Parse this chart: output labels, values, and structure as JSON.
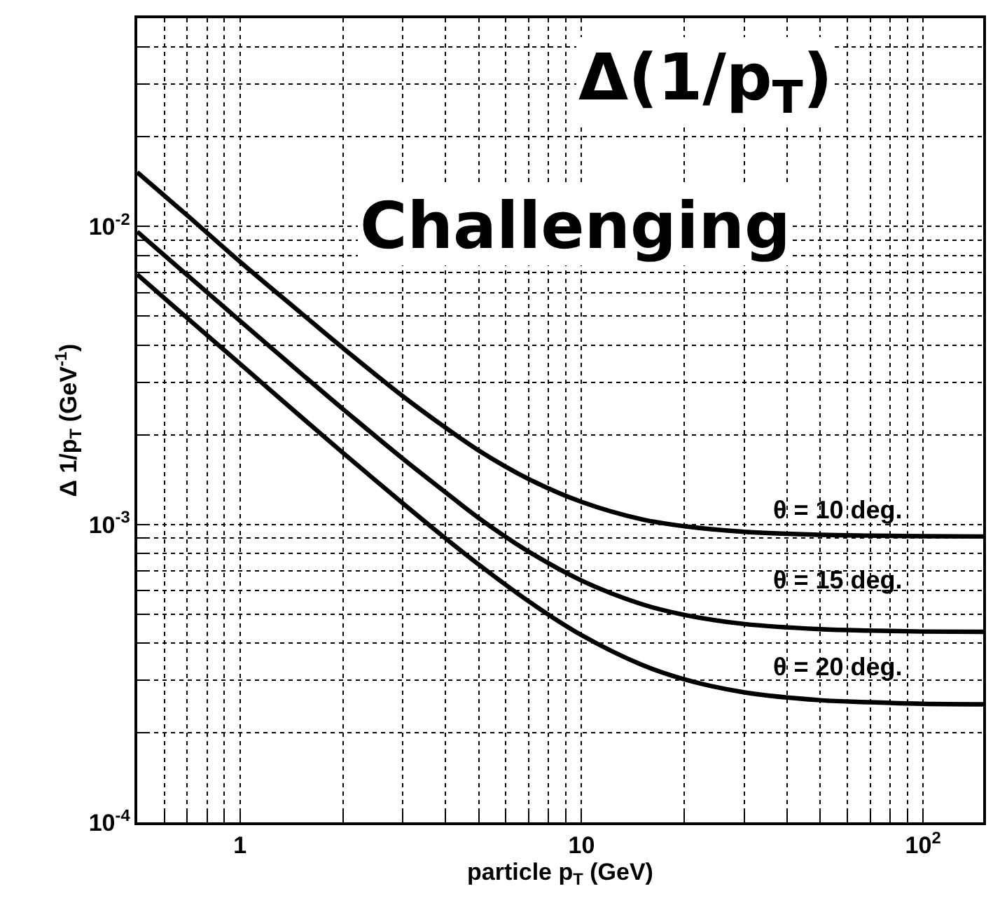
{
  "chart_data": {
    "type": "line",
    "xlabel": "particle p$_{T}$ (GeV)",
    "ylabel": "Δ 1/p$_{T}$ (GeV$^{-1}$)",
    "x": [
      0.5,
      0.7,
      1,
      1.5,
      2,
      3,
      4,
      5,
      7,
      10,
      15,
      20,
      30,
      50,
      70,
      100,
      150
    ],
    "series": [
      {
        "color": "#000000",
        "values": [
          0.0152,
          0.0109,
          0.00761,
          0.00515,
          0.00391,
          0.00269,
          0.00211,
          0.00177,
          0.00142,
          0.00119,
          0.00104,
          0.000986,
          0.000944,
          0.000923,
          0.000917,
          0.000913,
          0.000911
        ]
      },
      {
        "color": "#000000",
        "values": [
          0.0096,
          0.00687,
          0.00482,
          0.00323,
          0.00244,
          0.00166,
          0.00128,
          0.00105,
          0.00081,
          0.000648,
          0.00054,
          0.000497,
          0.000463,
          0.000445,
          0.00044,
          0.000437,
          0.000436
        ]
      },
      {
        "color": "#000000",
        "values": [
          0.0069,
          0.00493,
          0.00346,
          0.00231,
          0.00174,
          0.001176,
          0.000897,
          0.000733,
          0.000552,
          0.000425,
          0.000338,
          0.000302,
          0.000273,
          0.000257,
          0.000253,
          0.00025,
          0.000249
        ]
      }
    ],
    "annotations": [
      "Δ(1/p$_{T}$)",
      "Challenging",
      "θ = 10 deg.",
      "θ = 15 deg.",
      "θ = 20 deg."
    ],
    "log": "xy",
    "xlim": [
      0.5,
      150
    ],
    "ylim": [
      0.0001,
      0.05
    ],
    "xticks": [
      {
        "value": 0.6,
        "label": null
      },
      {
        "value": 0.7,
        "label": null
      },
      {
        "value": 0.8,
        "label": null
      },
      {
        "value": 0.9,
        "label": null
      },
      1,
      {
        "value": 2,
        "label": null
      },
      {
        "value": 3,
        "label": null
      },
      {
        "value": 4,
        "label": null
      },
      {
        "value": 5,
        "label": null
      },
      {
        "value": 6,
        "label": null
      },
      {
        "value": 7,
        "label": null
      },
      {
        "value": 8,
        "label": null
      },
      {
        "value": 9,
        "label": null
      },
      10,
      {
        "value": 20,
        "label": null
      },
      {
        "value": 30,
        "label": null
      },
      {
        "value": 40,
        "label": null
      },
      {
        "value": 50,
        "label": null
      },
      {
        "value": 60,
        "label": null
      },
      {
        "value": 70,
        "label": null
      },
      {
        "value": 80,
        "label": null
      },
      {
        "value": 90,
        "label": null
      },
      {
        "value": 100,
        "label": "10$^{2}$"
      }
    ],
    "yticks": [
      {
        "value": 0.0001,
        "label": "10$^{-4}$"
      },
      {
        "value": 0.0002,
        "label": null
      },
      {
        "value": 0.0003,
        "label": null
      },
      {
        "value": 0.0004,
        "label": null
      },
      {
        "value": 0.0005,
        "label": null
      },
      {
        "value": 0.0006,
        "label": null
      },
      {
        "value": 0.0007,
        "label": null
      },
      {
        "value": 0.0008,
        "label": null
      },
      {
        "value": 0.0009,
        "label": null
      },
      {
        "value": 0.001,
        "label": "10$^{-3}$"
      },
      {
        "value": 0.002,
        "label": null
      },
      {
        "value": 0.003,
        "label": null
      },
      {
        "value": 0.004,
        "label": null
      },
      {
        "value": 0.005,
        "label": null
      },
      {
        "value": 0.006,
        "label": null
      },
      {
        "value": 0.007,
        "label": null
      },
      {
        "value": 0.008,
        "label": null
      },
      {
        "value": 0.009,
        "label": null
      },
      {
        "value": 0.01,
        "label": "10$^{-2}$"
      },
      {
        "value": 0.02,
        "label": null
      },
      {
        "value": 0.03,
        "label": null
      },
      {
        "value": 0.04,
        "label": null
      }
    ],
    "grid": true,
    "marker": "none",
    "line_style": "solid"
  }
}
